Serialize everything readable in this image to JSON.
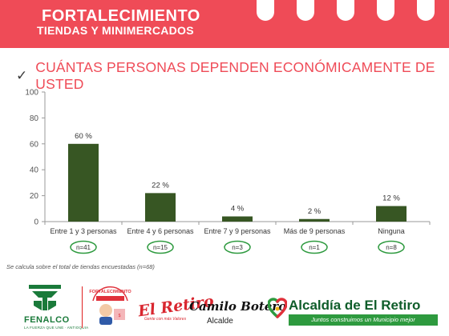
{
  "header": {
    "title": "FORTALECIMIENTO",
    "subtitle": "TIENDAS Y MINIMERCADOS"
  },
  "question": {
    "check_icon": "check-icon",
    "text": "CUÁNTAS PERSONAS DEPENDEN ECONÓMICAMENTE DE USTED"
  },
  "chart_data": {
    "type": "bar",
    "categories": [
      "Entre 1 y 3 personas",
      "Entre 4 y 6 personas",
      "Entre 7 y 9 personas",
      "Más de 9 personas",
      "Ninguna"
    ],
    "values": [
      60,
      22,
      4,
      2,
      12
    ],
    "data_labels": [
      "60 %",
      "22 %",
      "4 %",
      "2 %",
      "12 %"
    ],
    "counts": [
      "n=41",
      "n=15",
      "n=3",
      "n=1",
      "n=8"
    ],
    "ylim": [
      0,
      100
    ],
    "yticks": [
      0,
      20,
      40,
      60,
      80,
      100
    ],
    "grid": false,
    "legend": "none",
    "bar_color": "#375623",
    "count_circle_color": "#2e9a3f"
  },
  "note": "Se calcula sobre el total de tiendas encuestadas (n=68)",
  "footer": {
    "fenalco": {
      "name": "FENALCO",
      "tagline": "LA FUERZA QUE UNE · ANTIOQUIA"
    },
    "tiendas_logo": {
      "text": "FORTALECIMIENTO"
    },
    "el_retiro": {
      "name": "El Retiro",
      "tagline": "Gente con más Valores"
    },
    "camilo": {
      "name": "Camilo Botero",
      "role": "Alcalde"
    },
    "alcaldia": {
      "name": "Alcaldía de El Retiro",
      "tagline": "Juntos construimos un Municipio mejor"
    }
  },
  "colors": {
    "brand_red": "#ef4b57",
    "heading_red": "#ef4b57",
    "bar_green": "#375623",
    "brand_green": "#0f5d2a"
  }
}
